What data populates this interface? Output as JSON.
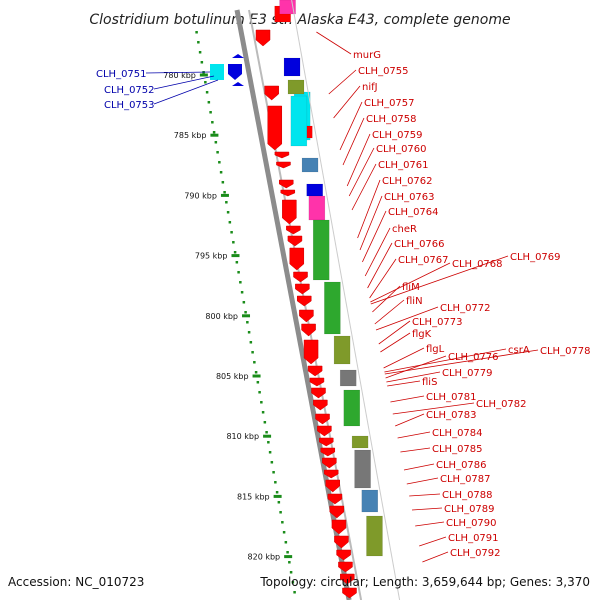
{
  "title": "Clostridium botulinum E3 str. Alaska E43, complete genome",
  "footer": {
    "accession": "Accession: NC_010723",
    "summary": "Topology: circular; Length: 3,659,644 bp; Genes: 3,370"
  },
  "colors": {
    "backbone": "#8c8c8c",
    "ruler_dot": "#1a8c1a",
    "label_red": "#cc0000",
    "label_blue": "#0000aa",
    "red": "#ff0000",
    "cyan": "#00e5ee",
    "blue": "#0000dd",
    "magenta": "#ff33aa",
    "olive": "#7f9a2a",
    "steel": "#4682b4",
    "green": "#2ea82e",
    "gray": "#777777"
  },
  "kbp_ticks": [
    {
      "kbp": 780,
      "label": "780 kbp"
    },
    {
      "kbp": 785,
      "label": "785 kbp"
    },
    {
      "kbp": 790,
      "label": "790 kbp"
    },
    {
      "kbp": 795,
      "label": "795 kbp"
    },
    {
      "kbp": 800,
      "label": "800 kbp"
    },
    {
      "kbp": 805,
      "label": "805 kbp"
    },
    {
      "kbp": 810,
      "label": "810 kbp"
    },
    {
      "kbp": 815,
      "label": "815 kbp"
    },
    {
      "kbp": 820,
      "label": "820 kbp"
    }
  ],
  "right_labels": [
    {
      "text": "murG",
      "color": "red"
    },
    {
      "text": "CLH_0755",
      "color": "red"
    },
    {
      "text": "nifJ",
      "color": "red"
    },
    {
      "text": "CLH_0757",
      "color": "red"
    },
    {
      "text": "CLH_0758",
      "color": "red"
    },
    {
      "text": "CLH_0759",
      "color": "red"
    },
    {
      "text": "CLH_0760",
      "color": "red"
    },
    {
      "text": "CLH_0761",
      "color": "red"
    },
    {
      "text": "CLH_0762",
      "color": "red"
    },
    {
      "text": "CLH_0763",
      "color": "red"
    },
    {
      "text": "CLH_0764",
      "color": "red"
    },
    {
      "text": "cheR",
      "color": "red"
    },
    {
      "text": "CLH_0766",
      "color": "red"
    },
    {
      "text": "CLH_0767",
      "color": "red"
    },
    {
      "text": "CLH_0768",
      "color": "red"
    },
    {
      "text": "CLH_0769",
      "color": "red"
    },
    {
      "text": "fliM",
      "color": "red"
    },
    {
      "text": "fliN",
      "color": "red"
    },
    {
      "text": "CLH_0772",
      "color": "red"
    },
    {
      "text": "CLH_0773",
      "color": "red"
    },
    {
      "text": "flgK",
      "color": "red"
    },
    {
      "text": "flgL",
      "color": "red"
    },
    {
      "text": "CLH_0776",
      "color": "red"
    },
    {
      "text": "csrA",
      "color": "red"
    },
    {
      "text": "CLH_0778",
      "color": "red"
    },
    {
      "text": "CLH_0779",
      "color": "red"
    },
    {
      "text": "fliS",
      "color": "red"
    },
    {
      "text": "CLH_0781",
      "color": "red"
    },
    {
      "text": "CLH_0782",
      "color": "red"
    },
    {
      "text": "CLH_0783",
      "color": "red"
    },
    {
      "text": "CLH_0784",
      "color": "red"
    },
    {
      "text": "CLH_0785",
      "color": "red"
    },
    {
      "text": "CLH_0786",
      "color": "red"
    },
    {
      "text": "CLH_0787",
      "color": "red"
    },
    {
      "text": "CLH_0788",
      "color": "red"
    },
    {
      "text": "CLH_0789",
      "color": "red"
    },
    {
      "text": "CLH_0790",
      "color": "red"
    },
    {
      "text": "CLH_0791",
      "color": "red"
    },
    {
      "text": "CLH_0792",
      "color": "red"
    }
  ],
  "left_labels": [
    {
      "text": "CLH_0751",
      "color": "blue"
    },
    {
      "text": "CLH_0752",
      "color": "blue"
    },
    {
      "text": "CLH_0753",
      "color": "blue"
    }
  ],
  "gene_blocks": [
    {
      "color": "red"
    },
    {
      "color": "magenta"
    },
    {
      "color": "cyan"
    },
    {
      "color": "blue"
    },
    {
      "color": "olive"
    },
    {
      "color": "red"
    },
    {
      "color": "cyan"
    },
    {
      "color": "steel"
    },
    {
      "color": "blue"
    },
    {
      "color": "magenta"
    },
    {
      "color": "green"
    },
    {
      "color": "green"
    },
    {
      "color": "olive"
    },
    {
      "color": "gray"
    },
    {
      "color": "green"
    },
    {
      "color": "olive"
    },
    {
      "color": "gray"
    },
    {
      "color": "steel"
    },
    {
      "color": "olive"
    }
  ]
}
